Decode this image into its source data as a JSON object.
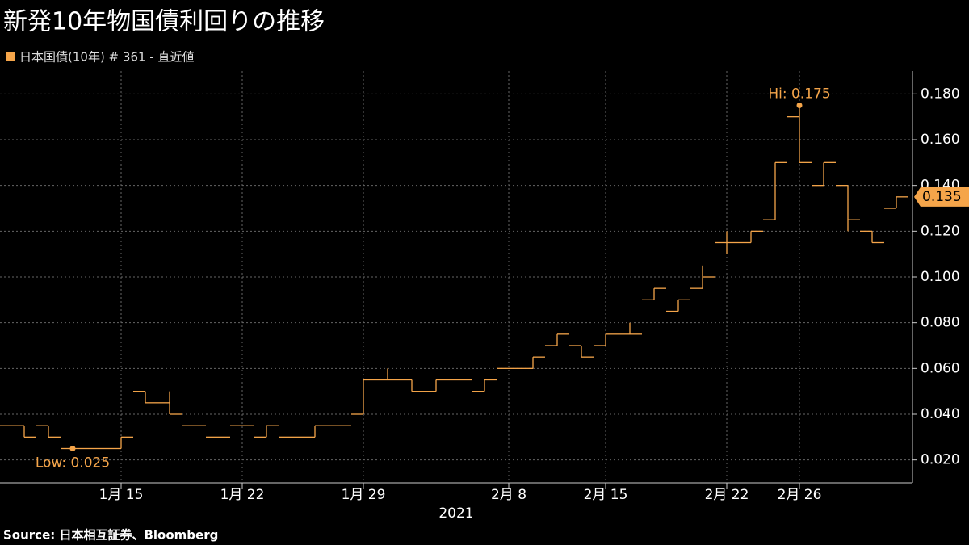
{
  "chart_data": {
    "type": "ohlc",
    "title": "新発10年物国債利回りの推移",
    "source": "Source:  日本相互証券、Bloomberg",
    "x": [
      "2021-01-07",
      "2021-01-08",
      "2021-01-12",
      "2021-01-13",
      "2021-01-14",
      "2021-01-15",
      "2021-01-18",
      "2021-01-19",
      "2021-01-20",
      "2021-01-21",
      "2021-01-22",
      "2021-01-25",
      "2021-01-26",
      "2021-01-27",
      "2021-01-28",
      "2021-01-29",
      "2021-02-01",
      "2021-02-02",
      "2021-02-03",
      "2021-02-04",
      "2021-02-05",
      "2021-02-08",
      "2021-02-09",
      "2021-02-10",
      "2021-02-12",
      "2021-02-15",
      "2021-02-16",
      "2021-02-17",
      "2021-02-18",
      "2021-02-19",
      "2021-02-22",
      "2021-02-24",
      "2021-02-25",
      "2021-02-26",
      "2021-03-01",
      "2021-03-02",
      "2021-03-03",
      "2021-03-04"
    ],
    "series": [
      {
        "name": "日本国債(10年) # 361 - 直近値",
        "color": "#f5a54a",
        "open": [
          0.035,
          0.035,
          0.035,
          0.025,
          0.025,
          0.025,
          0.05,
          0.045,
          0.035,
          0.03,
          0.035,
          0.03,
          0.03,
          0.03,
          0.035,
          0.04,
          0.055,
          0.055,
          0.05,
          0.055,
          0.05,
          0.06,
          0.06,
          0.07,
          0.07,
          0.07,
          0.075,
          0.09,
          0.085,
          0.095,
          0.115,
          0.115,
          0.125,
          0.17,
          0.14,
          0.14,
          0.12,
          0.13
        ],
        "high": [
          0.035,
          0.035,
          0.035,
          0.025,
          0.025,
          0.03,
          0.05,
          0.05,
          0.035,
          0.03,
          0.035,
          0.035,
          0.03,
          0.035,
          0.035,
          0.055,
          0.06,
          0.055,
          0.055,
          0.055,
          0.055,
          0.06,
          0.065,
          0.075,
          0.07,
          0.075,
          0.08,
          0.095,
          0.09,
          0.105,
          0.12,
          0.12,
          0.15,
          0.175,
          0.15,
          0.14,
          0.12,
          0.135
        ],
        "low": [
          0.035,
          0.03,
          0.03,
          0.025,
          0.025,
          0.025,
          0.045,
          0.04,
          0.035,
          0.03,
          0.035,
          0.03,
          0.03,
          0.03,
          0.035,
          0.04,
          0.055,
          0.05,
          0.05,
          0.055,
          0.05,
          0.06,
          0.06,
          0.07,
          0.065,
          0.07,
          0.075,
          0.09,
          0.085,
          0.095,
          0.11,
          0.115,
          0.125,
          0.15,
          0.14,
          0.12,
          0.115,
          0.13
        ],
        "close": [
          0.035,
          0.03,
          0.03,
          0.025,
          0.025,
          0.03,
          0.045,
          0.04,
          0.035,
          0.03,
          0.035,
          0.035,
          0.03,
          0.035,
          0.035,
          0.055,
          0.055,
          0.05,
          0.055,
          0.055,
          0.055,
          0.06,
          0.065,
          0.075,
          0.065,
          0.075,
          0.075,
          0.095,
          0.09,
          0.1,
          0.115,
          0.12,
          0.15,
          0.15,
          0.15,
          0.125,
          0.115,
          0.135
        ]
      }
    ],
    "ylim": [
      0.01,
      0.19
    ],
    "yticks": [
      {
        "value": 0.02,
        "label": "0.020"
      },
      {
        "value": 0.04,
        "label": "0.040"
      },
      {
        "value": 0.06,
        "label": "0.060"
      },
      {
        "value": 0.08,
        "label": "0.080"
      },
      {
        "value": 0.1,
        "label": "0.100"
      },
      {
        "value": 0.12,
        "label": "0.120"
      },
      {
        "value": 0.14,
        "label": "0.140"
      },
      {
        "value": 0.16,
        "label": "0.160"
      },
      {
        "value": 0.18,
        "label": "0.180"
      }
    ],
    "xticks": [
      {
        "value": "2021-01-15",
        "label": "1月 15"
      },
      {
        "value": "2021-01-22",
        "label": "1月 22"
      },
      {
        "value": "2021-01-29",
        "label": "1月 29"
      },
      {
        "value": "2021-02-08",
        "label": "2月 8"
      },
      {
        "value": "2021-02-15",
        "label": "2月 15"
      },
      {
        "value": "2021-02-22",
        "label": "2月 22"
      },
      {
        "value": "2021-02-26",
        "label": "2月 26"
      }
    ],
    "x_axis_year": "2021",
    "grid": true,
    "annotations": [
      {
        "text": "Hi: 0.175",
        "x": "2021-02-26",
        "y": 0.175,
        "kind": "point"
      },
      {
        "text": "Low: 0.025",
        "x": "2021-01-13",
        "y": 0.025,
        "kind": "point"
      },
      {
        "text": "0.135",
        "x": "2021-03-04",
        "y": 0.135,
        "kind": "last"
      }
    ]
  }
}
